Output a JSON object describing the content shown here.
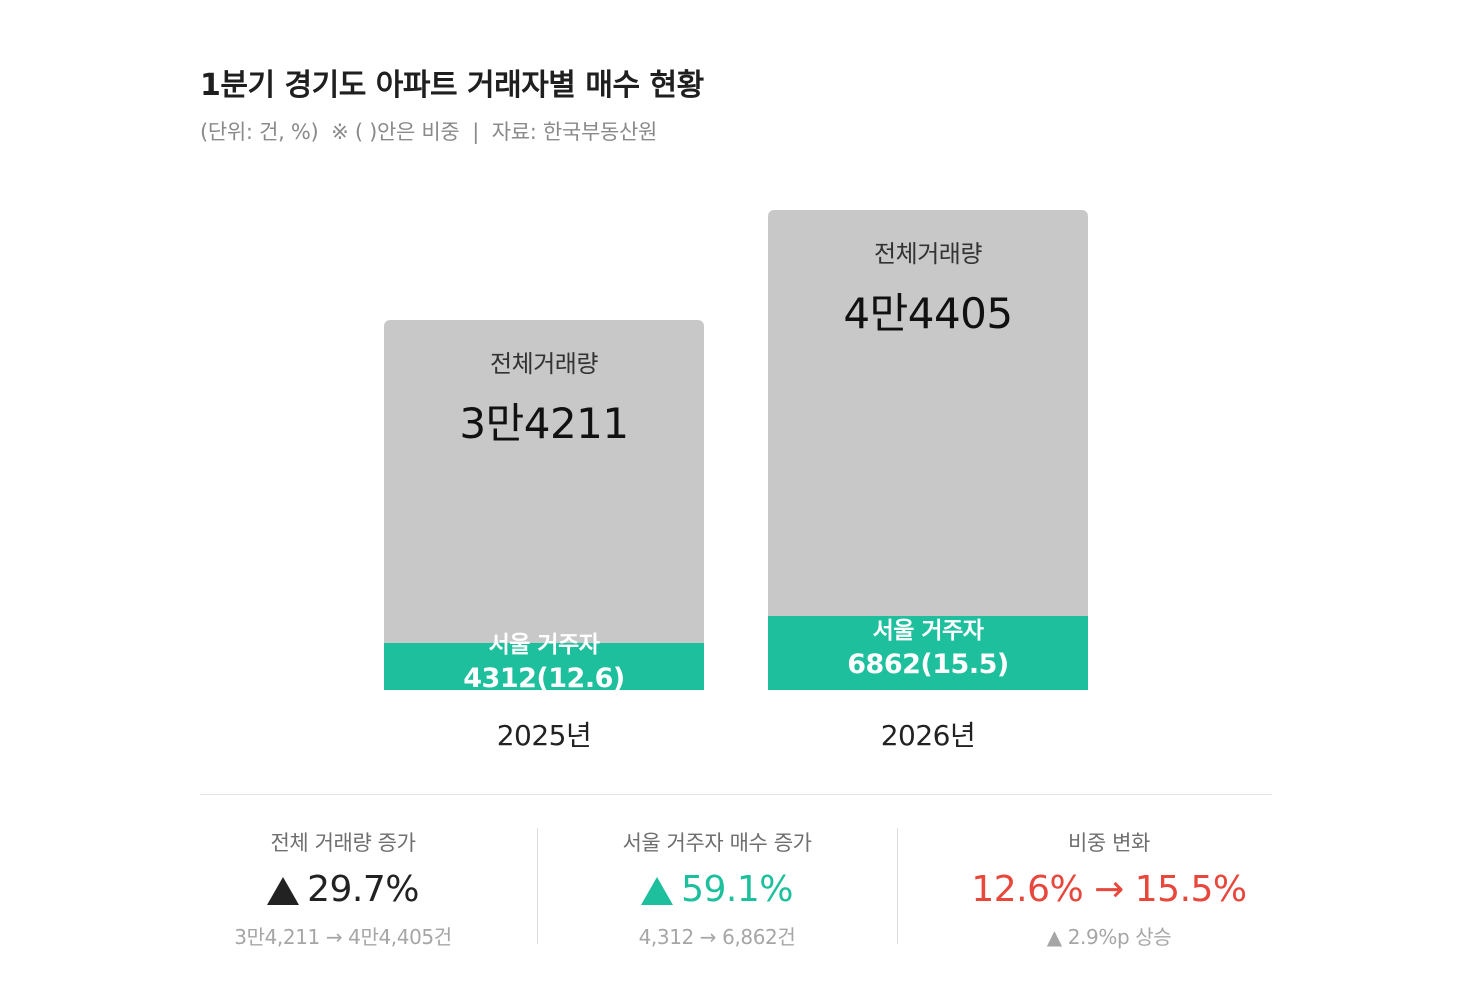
{
  "header": {
    "title": "1분기 경기도 아파트 거래자별 매수 현황",
    "subtitle": "(단위: 건, %)  ※ ( )안은 비중  |  자료: 한국부동산원"
  },
  "chart_data": {
    "type": "bar",
    "stacked": true,
    "categories": [
      "2025년",
      "2026년"
    ],
    "series": [
      {
        "name": "서울 거주자",
        "values": [
          4312,
          6862
        ],
        "shares": [
          12.6,
          15.5
        ]
      },
      {
        "name": "전체거래량",
        "values": [
          34211,
          44405
        ]
      }
    ],
    "labels": {
      "total_caption": "전체거래량",
      "total_display": [
        "3만4211",
        "4만4405"
      ],
      "seoul_caption": "서울 거주자",
      "seoul_display": [
        "4312(12.6)",
        "6862(15.5)"
      ]
    },
    "colors": {
      "total": "#c8c8c8",
      "seoul": "#1dbf9c"
    }
  },
  "stats": [
    {
      "label": "전체 거래량 증가",
      "value": "29.7%",
      "arrow": "up",
      "color": "#222222",
      "sub": "3만4,211 → 4만4,405건"
    },
    {
      "label": "서울 거주자 매수 증가",
      "value": "59.1%",
      "arrow": "up",
      "color": "#1dbf9c",
      "sub": "4,312 → 6,862건"
    },
    {
      "label": "비중 변화",
      "value": "12.6% → 15.5%",
      "color": "#e8473c",
      "sub": "▲ 2.9%p 상승"
    }
  ]
}
